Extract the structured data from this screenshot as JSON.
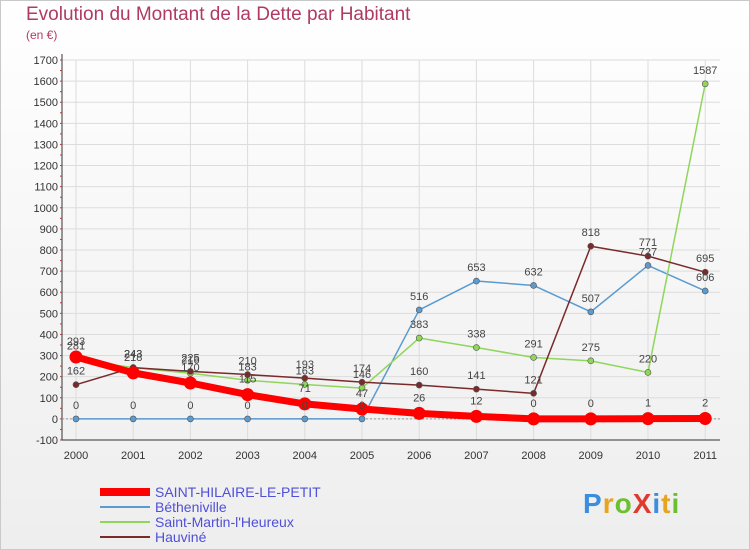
{
  "header": {
    "title": "Evolution du Montant de la Dette par Habitant",
    "unit": "(en €)"
  },
  "logo": {
    "text": "ProXiti",
    "letter_colors": [
      "#3a8ee0",
      "#e8a41e",
      "#6cbf2e",
      "#e0392e",
      "#3a8ee0",
      "#e8a41e",
      "#6cbf2e"
    ]
  },
  "chart_data": {
    "type": "line",
    "title": "Evolution du Montant de la Dette par Habitant",
    "subtitle": "(en €)",
    "xlabel": "",
    "ylabel": "",
    "ylim": [
      -100,
      1700
    ],
    "yticks": [
      -100,
      0,
      100,
      200,
      300,
      400,
      500,
      600,
      700,
      800,
      900,
      1000,
      1100,
      1200,
      1300,
      1400,
      1500,
      1600,
      1700
    ],
    "categories": [
      "2000",
      "2001",
      "2002",
      "2003",
      "2004",
      "2005",
      "2006",
      "2007",
      "2008",
      "2009",
      "2010",
      "2011"
    ],
    "grid": true,
    "legend": "bottom-left",
    "series": [
      {
        "name": "SAINT-HILAIRE-LE-PETIT",
        "color": "#ff0000",
        "values": [
          293,
          218,
          170,
          115,
          71,
          47,
          26,
          12,
          0,
          0,
          1,
          2
        ],
        "labels": [
          "293",
          "218",
          "170",
          "115",
          "71",
          "47",
          "26",
          "12",
          "0",
          "0",
          "1",
          "2"
        ]
      },
      {
        "name": "Bétheniville",
        "color": "#5a9bd0",
        "values": [
          0,
          0,
          0,
          0,
          0,
          0,
          516,
          653,
          632,
          507,
          727,
          606
        ],
        "labels": [
          "0",
          "0",
          "0",
          "0",
          "0",
          "0",
          "516",
          "653",
          "632",
          "507",
          "727",
          "606"
        ]
      },
      {
        "name": "Saint-Martin-l'Heureux",
        "color": "#90d65a",
        "values": [
          281,
          243,
          216,
          183,
          163,
          146,
          383,
          338,
          291,
          275,
          220,
          1587
        ],
        "labels": [
          "281",
          "243",
          "216",
          "183",
          "163",
          "146",
          "383",
          "338",
          "291",
          "275",
          "220",
          "1587"
        ]
      },
      {
        "name": "Hauviné",
        "color": "#7a2a2a",
        "values": [
          162,
          243,
          225,
          210,
          193,
          174,
          160,
          141,
          121,
          818,
          771,
          695
        ],
        "labels": [
          "162",
          "243",
          "225",
          "210",
          "193",
          "174",
          "160",
          "141",
          "121",
          "818",
          "771",
          "695"
        ]
      }
    ]
  }
}
